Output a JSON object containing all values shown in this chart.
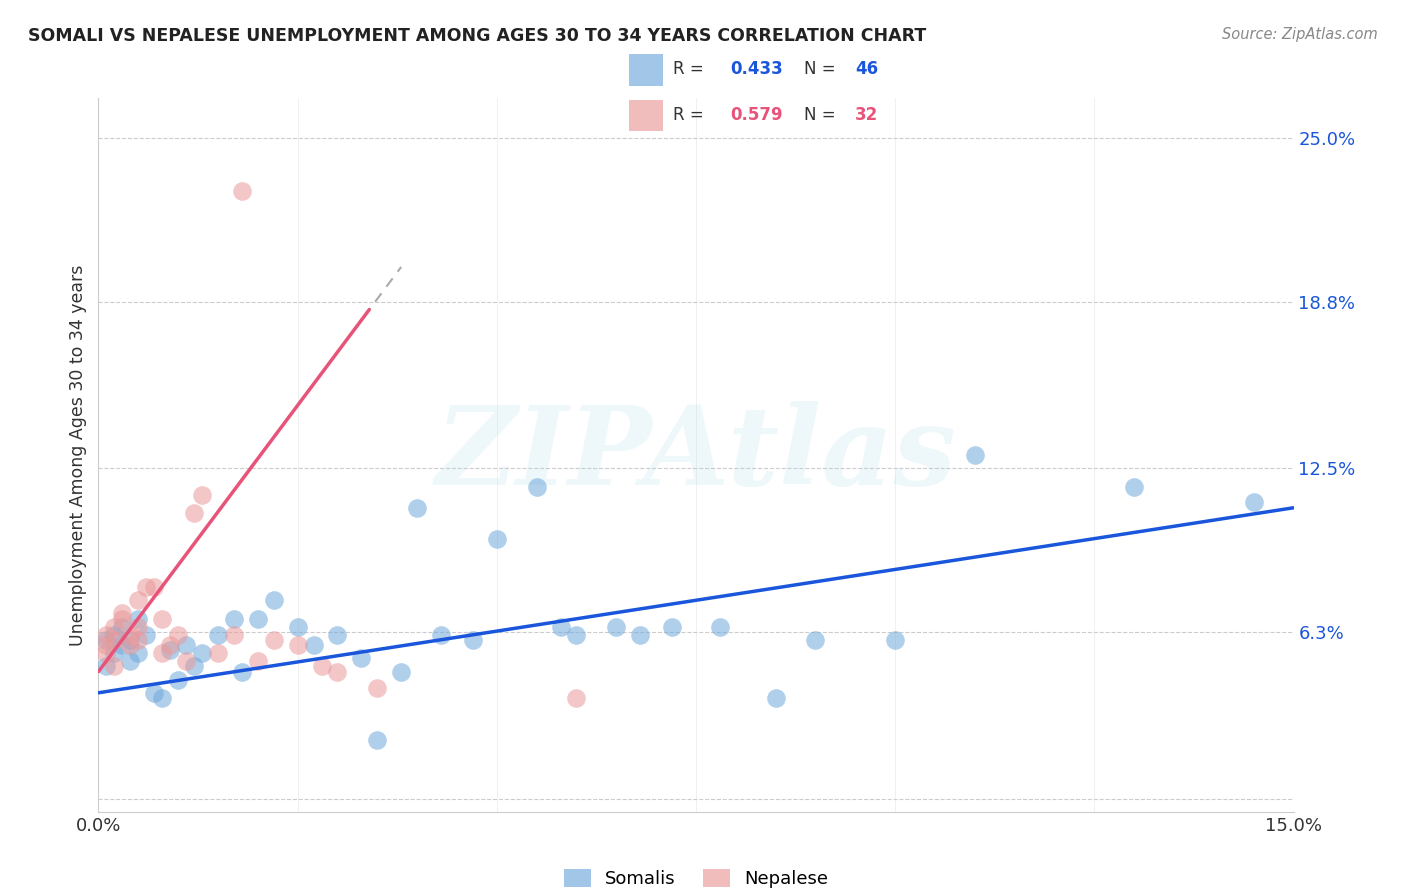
{
  "title": "SOMALI VS NEPALESE UNEMPLOYMENT AMONG AGES 30 TO 34 YEARS CORRELATION CHART",
  "source": "Source: ZipAtlas.com",
  "ylabel": "Unemployment Among Ages 30 to 34 years",
  "xlim": [
    0.0,
    0.15
  ],
  "ylim": [
    -0.005,
    0.265
  ],
  "yticks": [
    0.0,
    0.063,
    0.125,
    0.188,
    0.25
  ],
  "ytick_labels": [
    "",
    "6.3%",
    "12.5%",
    "18.8%",
    "25.0%"
  ],
  "xticks": [
    0.0,
    0.025,
    0.05,
    0.075,
    0.1,
    0.125,
    0.15
  ],
  "xtick_labels": [
    "0.0%",
    "",
    "",
    "",
    "",
    "",
    "15.0%"
  ],
  "somalis_x": [
    0.001,
    0.001,
    0.002,
    0.002,
    0.003,
    0.003,
    0.004,
    0.004,
    0.005,
    0.005,
    0.006,
    0.007,
    0.008,
    0.009,
    0.01,
    0.011,
    0.012,
    0.013,
    0.015,
    0.017,
    0.018,
    0.02,
    0.022,
    0.025,
    0.027,
    0.03,
    0.033,
    0.035,
    0.038,
    0.04,
    0.043,
    0.047,
    0.05,
    0.055,
    0.058,
    0.06,
    0.065,
    0.068,
    0.072,
    0.078,
    0.085,
    0.09,
    0.1,
    0.11,
    0.13,
    0.145
  ],
  "somalis_y": [
    0.06,
    0.05,
    0.062,
    0.055,
    0.065,
    0.058,
    0.06,
    0.052,
    0.068,
    0.055,
    0.062,
    0.04,
    0.038,
    0.056,
    0.045,
    0.058,
    0.05,
    0.055,
    0.062,
    0.068,
    0.048,
    0.068,
    0.075,
    0.065,
    0.058,
    0.062,
    0.053,
    0.022,
    0.048,
    0.11,
    0.062,
    0.06,
    0.098,
    0.118,
    0.065,
    0.062,
    0.065,
    0.062,
    0.065,
    0.065,
    0.038,
    0.06,
    0.06,
    0.13,
    0.118,
    0.112
  ],
  "nepalese_x": [
    0.001,
    0.001,
    0.001,
    0.002,
    0.002,
    0.002,
    0.003,
    0.003,
    0.004,
    0.004,
    0.005,
    0.005,
    0.005,
    0.006,
    0.007,
    0.008,
    0.008,
    0.009,
    0.01,
    0.011,
    0.012,
    0.013,
    0.015,
    0.017,
    0.02,
    0.022,
    0.025,
    0.028,
    0.03,
    0.035,
    0.06,
    0.018
  ],
  "nepalese_y": [
    0.062,
    0.058,
    0.055,
    0.065,
    0.05,
    0.06,
    0.068,
    0.07,
    0.058,
    0.062,
    0.075,
    0.065,
    0.06,
    0.08,
    0.08,
    0.068,
    0.055,
    0.058,
    0.062,
    0.052,
    0.108,
    0.115,
    0.055,
    0.062,
    0.052,
    0.06,
    0.058,
    0.05,
    0.048,
    0.042,
    0.038,
    0.23
  ],
  "somali_color": "#6fa8dc",
  "nepalese_color": "#ea9999",
  "somali_line_color": "#1a56db",
  "nepalese_line_color": "#e8537a",
  "somali_R": 0.433,
  "somali_N": 46,
  "nepalese_R": 0.579,
  "nepalese_N": 32,
  "watermark": "ZIPAtlas",
  "background_color": "#ffffff",
  "grid_color": "#cccccc",
  "somali_line_start_y": 0.04,
  "somali_line_end_y": 0.11,
  "nepalese_line_x1": 0.0,
  "nepalese_line_y1": 0.048,
  "nepalese_line_x2": 0.034,
  "nepalese_line_y2": 0.185
}
